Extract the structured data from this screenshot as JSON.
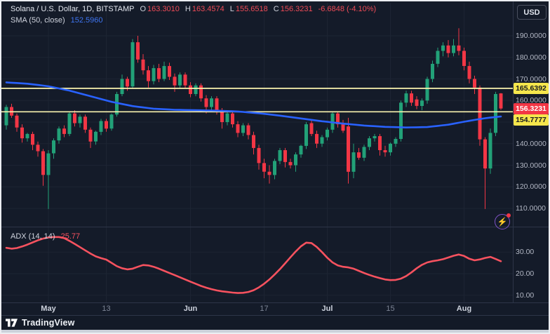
{
  "header": {
    "symbol_title": "Solana / U.S. Dollar, 1D, BITSTAMP",
    "ohlc": {
      "o_label": "O",
      "o_value": "163.3010",
      "h_label": "H",
      "h_value": "163.4574",
      "l_label": "L",
      "l_value": "155.6518",
      "c_label": "C",
      "c_value": "156.3231",
      "change": "-6.6848 (-4.10%)"
    },
    "sma_label": "SMA (50, close)",
    "sma_value": "152.5960",
    "currency": "USD"
  },
  "indicator_legend": {
    "label": "ADX (14, 14)",
    "value": "25.77"
  },
  "footer": {
    "brand": "TradingView"
  },
  "icons": {
    "flash": "⚡"
  },
  "colors": {
    "background": "#141b29",
    "grid": "#1d2433",
    "separator": "#2d3548",
    "up": "#22a178",
    "down": "#f23645",
    "sma": "#2962ff",
    "adx_line": "#f7525f",
    "hline": "#faf3ae",
    "badge_yellow": "#f5e64c",
    "badge_yellow_text": "#15191f",
    "badge_red": "#f23645",
    "badge_red_text": "#ffffff",
    "axis_text": "#b2b7c4"
  },
  "chart_data": {
    "type": "candlestick",
    "title": "Solana / U.S. Dollar, 1D, BITSTAMP",
    "legend_position": "top-left",
    "grid": true,
    "price_pane": {
      "ylim": [
        105,
        196
      ],
      "yticks": [
        {
          "label": "190.0000",
          "value": 190
        },
        {
          "label": "180.0000",
          "value": 180
        },
        {
          "label": "170.0000",
          "value": 170
        },
        {
          "label": "160.0000",
          "value": 160
        },
        {
          "label": "150.0000",
          "value": 150
        },
        {
          "label": "140.0000",
          "value": 140
        },
        {
          "label": "130.0000",
          "value": 130
        },
        {
          "label": "120.0000",
          "value": 120
        },
        {
          "label": "110.0000",
          "value": 110
        }
      ],
      "hlines": [
        {
          "price": 165.6392,
          "label": "165.6392"
        },
        {
          "price": 154.7777,
          "label": "154.7777"
        }
      ],
      "last": {
        "price": 156.3231,
        "label": "156.3231",
        "direction": "down"
      },
      "candles": [
        [
          148.5,
          158,
          146.5,
          157
        ],
        [
          157,
          158.5,
          152,
          153
        ],
        [
          153,
          154,
          145.5,
          147.5
        ],
        [
          147.5,
          149,
          140.5,
          142.5
        ],
        [
          142.5,
          145,
          141,
          144.5
        ],
        [
          144.5,
          145.5,
          137,
          139.5
        ],
        [
          139.5,
          141,
          134,
          136.5
        ],
        [
          136.5,
          137.5,
          120.5,
          125.5
        ],
        [
          125.5,
          137,
          109.7,
          135.5
        ],
        [
          135.5,
          142.5,
          133,
          141.5
        ],
        [
          141.5,
          148,
          140,
          147
        ],
        [
          147,
          148.5,
          143,
          144.5
        ],
        [
          144.5,
          155,
          143.5,
          154
        ],
        [
          154,
          155.5,
          148,
          149.5
        ],
        [
          149.5,
          153.5,
          147.5,
          152.5
        ],
        [
          152.5,
          153.5,
          145,
          146.5
        ],
        [
          146.5,
          147.5,
          138,
          141
        ],
        [
          141,
          146,
          139.5,
          145.5
        ],
        [
          145.5,
          151.5,
          144,
          150.5
        ],
        [
          150.5,
          151.5,
          145.5,
          147
        ],
        [
          147,
          154,
          146,
          153.5
        ],
        [
          153.5,
          164,
          152.5,
          163
        ],
        [
          163,
          172,
          162,
          170
        ],
        [
          170,
          171,
          164.5,
          166.5
        ],
        [
          166.5,
          188.5,
          165.5,
          187
        ],
        [
          187,
          190,
          177.5,
          179
        ],
        [
          179,
          181.5,
          172,
          174
        ],
        [
          174,
          176,
          166,
          169
        ],
        [
          169,
          176.5,
          167.5,
          175
        ],
        [
          175,
          177,
          168.5,
          170
        ],
        [
          170,
          178,
          169,
          176
        ],
        [
          176,
          177.5,
          169.5,
          171
        ],
        [
          171,
          172.5,
          164,
          167
        ],
        [
          167,
          173,
          165.5,
          172
        ],
        [
          172,
          173,
          165.5,
          167
        ],
        [
          167,
          168.5,
          161.5,
          163
        ],
        [
          163,
          168,
          162,
          167
        ],
        [
          167,
          168,
          159.5,
          161
        ],
        [
          161,
          162.5,
          154,
          157
        ],
        [
          157,
          162,
          155.5,
          161
        ],
        [
          161,
          162,
          153.5,
          155
        ],
        [
          155,
          156.5,
          147,
          150
        ],
        [
          150,
          155,
          148.5,
          154
        ],
        [
          154,
          155,
          147.5,
          149
        ],
        [
          149,
          150.5,
          143,
          145
        ],
        [
          145,
          149.5,
          143.5,
          148.5
        ],
        [
          148.5,
          149.5,
          142,
          144
        ],
        [
          144,
          145.5,
          135,
          138
        ],
        [
          138,
          139.5,
          128,
          131
        ],
        [
          131,
          133,
          124,
          127
        ],
        [
          127,
          130,
          121.5,
          125.5
        ],
        [
          125.5,
          133,
          123.5,
          132
        ],
        [
          132,
          138,
          130.5,
          137
        ],
        [
          137,
          138,
          129,
          131.5
        ],
        [
          131.5,
          133,
          128.5,
          130
        ],
        [
          130,
          136,
          127,
          135
        ],
        [
          135,
          139.5,
          133.5,
          139
        ],
        [
          139,
          150,
          137.5,
          149
        ],
        [
          149.5,
          151,
          143.5,
          144.5
        ],
        [
          144.5,
          146,
          138,
          140
        ],
        [
          140,
          144,
          138.5,
          143
        ],
        [
          143,
          147.5,
          141.5,
          146.5
        ],
        [
          146.5,
          155,
          145,
          154
        ],
        [
          154,
          155,
          147.5,
          149
        ],
        [
          149,
          151,
          145,
          146
        ],
        [
          148,
          152,
          121.5,
          127
        ],
        [
          127,
          140,
          124,
          136
        ],
        [
          136,
          138,
          132.5,
          133.5
        ],
        [
          133.5,
          139.5,
          132,
          138.5
        ],
        [
          138.5,
          143.5,
          137,
          142.5
        ],
        [
          142.5,
          144.5,
          141,
          143.5
        ],
        [
          143.5,
          144.5,
          134.5,
          137
        ],
        [
          137,
          139,
          134,
          136
        ],
        [
          136,
          140.5,
          134.5,
          140
        ],
        [
          140,
          143,
          138.5,
          142.2
        ],
        [
          142.2,
          160,
          141,
          159
        ],
        [
          159,
          164.5,
          157,
          163.3
        ],
        [
          163.3,
          164.5,
          157.5,
          159
        ],
        [
          160.5,
          162,
          156,
          157.5
        ],
        [
          157.5,
          161,
          155.5,
          160
        ],
        [
          160,
          171,
          158.5,
          170
        ],
        [
          170,
          178.5,
          168.5,
          177
        ],
        [
          177,
          184.5,
          175.5,
          183
        ],
        [
          183,
          187,
          180.5,
          185.5
        ],
        [
          185.5,
          188,
          180,
          182
        ],
        [
          182,
          188.5,
          180.5,
          185.5
        ],
        [
          185.5,
          193.5,
          181,
          183
        ],
        [
          183,
          184.5,
          174,
          176
        ],
        [
          176,
          178,
          168,
          170
        ],
        [
          170,
          171.5,
          163,
          166
        ],
        [
          166,
          167,
          139,
          142
        ],
        [
          142,
          143,
          109.7,
          128.5
        ],
        [
          128.5,
          147,
          126,
          145
        ],
        [
          145,
          164,
          143.5,
          163
        ],
        [
          163.301,
          163.4574,
          155.6518,
          156.3231
        ]
      ],
      "sma50": [
        168.4,
        168.25,
        168.1,
        167.95,
        167.8,
        167.5,
        167.2,
        166.9,
        166.6,
        166.1,
        165.6,
        165.1,
        164.6,
        163.95,
        163.3,
        162.65,
        162.0,
        161.35,
        160.7,
        160.05,
        159.4,
        158.9,
        158.4,
        157.9,
        157.4,
        157.1,
        156.8,
        156.5,
        156.2,
        156.08,
        155.95,
        155.83,
        155.7,
        155.65,
        155.6,
        155.55,
        155.5,
        155.45,
        155.4,
        155.35,
        155.3,
        155.2,
        155.1,
        155.0,
        154.9,
        154.7,
        154.5,
        154.3,
        154.1,
        153.83,
        153.55,
        153.28,
        153.0,
        152.68,
        152.35,
        152.03,
        151.7,
        151.38,
        151.05,
        150.73,
        150.4,
        150.13,
        149.85,
        149.58,
        149.3,
        149.08,
        148.85,
        148.63,
        148.4,
        148.25,
        148.1,
        147.95,
        147.8,
        147.73,
        147.65,
        147.58,
        147.5,
        147.55,
        147.6,
        147.65,
        147.7,
        147.98,
        148.25,
        148.53,
        148.8,
        149.25,
        149.7,
        150.15,
        150.6,
        151.0,
        151.4,
        151.8,
        152.07,
        152.33,
        152.6
      ]
    },
    "adx_pane": {
      "ylim": [
        8,
        40
      ],
      "yticks": [
        {
          "label": "30.00",
          "value": 30
        },
        {
          "label": "20.00",
          "value": 20
        },
        {
          "label": "10.00",
          "value": 10
        }
      ],
      "adx": [
        32.0,
        31.6,
        31.9,
        32.6,
        33.5,
        34.5,
        35.5,
        36.3,
        36.8,
        37.0,
        37.0,
        36.5,
        35.2,
        33.8,
        32.3,
        30.8,
        29.3,
        28.0,
        27.2,
        26.5,
        25.0,
        23.5,
        22.5,
        22.0,
        22.3,
        23.2,
        24.0,
        23.8,
        23.2,
        22.3,
        21.3,
        20.3,
        19.3,
        18.3,
        17.3,
        16.3,
        15.3,
        14.3,
        13.5,
        12.8,
        12.2,
        11.8,
        11.5,
        11.2,
        11.0,
        11.1,
        11.5,
        12.3,
        13.6,
        15.3,
        17.3,
        19.6,
        22.1,
        24.8,
        27.6,
        30.3,
        32.7,
        34.4,
        34.2,
        32.4,
        30.0,
        27.4,
        25.2,
        23.8,
        23.2,
        22.9,
        22.3,
        21.3,
        20.3,
        19.4,
        18.6,
        17.9,
        17.3,
        17.0,
        17.1,
        17.7,
        18.9,
        20.6,
        22.5,
        24.1,
        25.2,
        25.8,
        26.2,
        26.7,
        27.5,
        28.3,
        28.9,
        28.2,
        26.9,
        26.2,
        26.6,
        27.3,
        27.8,
        26.8,
        25.77
      ]
    },
    "x_axis": {
      "labels": [
        {
          "text": "May",
          "i": 8,
          "major": true
        },
        {
          "text": "13",
          "i": 19,
          "major": false
        },
        {
          "text": "Jun",
          "i": 35,
          "major": true
        },
        {
          "text": "17",
          "i": 49,
          "major": false
        },
        {
          "text": "Jul",
          "i": 61,
          "major": true
        },
        {
          "text": "15",
          "i": 73,
          "major": false
        },
        {
          "text": "Aug",
          "i": 87,
          "major": true
        }
      ]
    }
  }
}
